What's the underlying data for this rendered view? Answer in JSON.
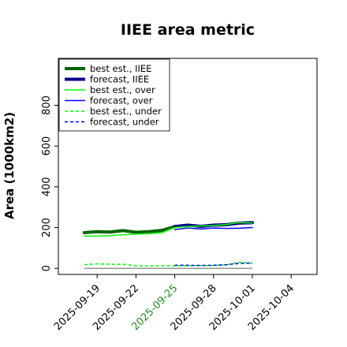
{
  "chart_data": {
    "type": "line",
    "title": "IIEE area metric",
    "xlabel": "",
    "ylabel": "Area (1000km2)",
    "x_ticks": [
      "2025-09-19",
      "2025-09-22",
      "2025-09-25",
      "2025-09-28",
      "2025-10-01",
      "2025-10-04"
    ],
    "highlight_tick": "2025-09-25",
    "highlight_color": "#228b22",
    "xlim": [
      "2025-09-16",
      "2025-10-06"
    ],
    "ylim": [
      -30,
      1030
    ],
    "y_ticks": [
      0,
      200,
      400,
      600,
      800
    ],
    "legend_position": "top-left",
    "grid": false,
    "series": [
      {
        "name": "best est., IIEE",
        "color": "#006400",
        "style": "solid",
        "width": 4,
        "x": [
          "2025-09-18",
          "2025-09-19",
          "2025-09-20",
          "2025-09-21",
          "2025-09-22",
          "2025-09-23",
          "2025-09-24",
          "2025-09-25"
        ],
        "values": [
          175,
          180,
          178,
          185,
          177,
          180,
          186,
          205
        ]
      },
      {
        "name": "forecast, IIEE",
        "color": "#00008b",
        "style": "solid",
        "width": 4,
        "x": [
          "2025-09-25",
          "2025-09-26",
          "2025-09-27",
          "2025-09-28",
          "2025-09-29",
          "2025-09-30",
          "2025-10-01"
        ],
        "values": [
          205,
          212,
          206,
          212,
          214,
          222,
          224
        ]
      },
      {
        "name": "best est., over",
        "color": "#00ff00",
        "style": "solid",
        "width": 1.5,
        "x": [
          "2025-09-18",
          "2025-09-19",
          "2025-09-20",
          "2025-09-21",
          "2025-09-22",
          "2025-09-23",
          "2025-09-24",
          "2025-09-25",
          "2025-09-26",
          "2025-09-27",
          "2025-09-28",
          "2025-09-29",
          "2025-09-30",
          "2025-10-01"
        ],
        "values": [
          158,
          158,
          160,
          165,
          168,
          170,
          175,
          200,
          205,
          208,
          210,
          215,
          225,
          222
        ]
      },
      {
        "name": "forecast, over",
        "color": "#0000ff",
        "style": "solid",
        "width": 1.5,
        "x": [
          "2025-09-25",
          "2025-09-26",
          "2025-09-27",
          "2025-09-28",
          "2025-09-29",
          "2025-09-30",
          "2025-10-01"
        ],
        "values": [
          190,
          198,
          193,
          198,
          196,
          197,
          200
        ]
      },
      {
        "name": "best est., under",
        "color": "#00ff00",
        "style": "dashed",
        "width": 1.5,
        "x": [
          "2025-09-18",
          "2025-09-19",
          "2025-09-20",
          "2025-09-21",
          "2025-09-22",
          "2025-09-23",
          "2025-09-24",
          "2025-09-25",
          "2025-09-26",
          "2025-09-27",
          "2025-09-28",
          "2025-09-29",
          "2025-09-30",
          "2025-10-01"
        ],
        "values": [
          18,
          22,
          20,
          20,
          12,
          12,
          13,
          12,
          12,
          13,
          14,
          17,
          30,
          25
        ]
      },
      {
        "name": "forecast, under",
        "color": "#0000ff",
        "style": "dashed",
        "width": 1.5,
        "x": [
          "2025-09-25",
          "2025-09-26",
          "2025-09-27",
          "2025-09-28",
          "2025-09-29",
          "2025-09-30",
          "2025-10-01"
        ],
        "values": [
          15,
          15,
          14,
          15,
          18,
          24,
          26
        ]
      }
    ],
    "baseline": {
      "color": "#808080",
      "x": [
        "2025-09-18",
        "2025-10-01"
      ],
      "values": [
        0,
        0
      ]
    }
  }
}
